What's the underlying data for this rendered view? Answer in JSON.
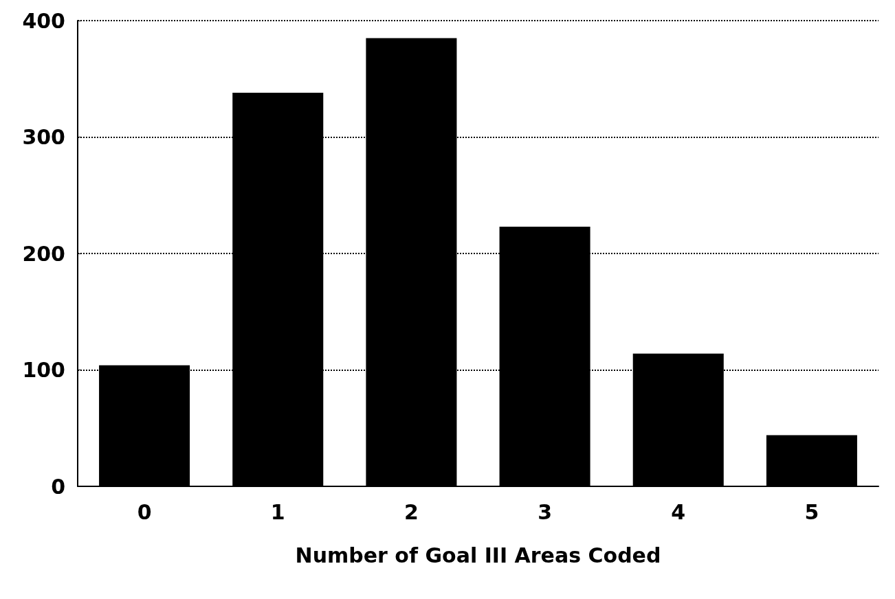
{
  "chart_data": {
    "type": "bar",
    "xlabel": "Number of Goal III Areas Coded",
    "categories": [
      "0",
      "1",
      "2",
      "3",
      "4",
      "5"
    ],
    "values": [
      104,
      338,
      385,
      223,
      114,
      44
    ],
    "color": "#000000",
    "ylim": [
      0,
      400
    ],
    "yticks": [
      0,
      100,
      200,
      300,
      400
    ],
    "grid": "y"
  }
}
